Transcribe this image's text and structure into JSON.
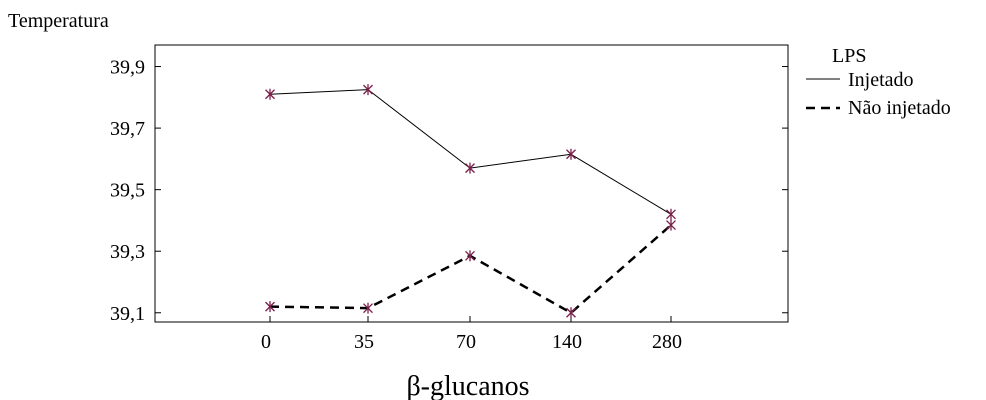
{
  "chart_data": {
    "type": "line",
    "ylabel": "Temperatura",
    "xlabel": "β-glucanos",
    "categories": [
      "0",
      "35",
      "70",
      "140",
      "280"
    ],
    "ylim": [
      39.07,
      39.97
    ],
    "yticks": [
      "39,1",
      "39,3",
      "39,5",
      "39,7",
      "39,9"
    ],
    "ytick_values": [
      39.1,
      39.3,
      39.5,
      39.7,
      39.9
    ],
    "legend": {
      "title": "LPS",
      "placement": "right"
    },
    "grid": false,
    "series": [
      {
        "name": "Injetado",
        "style": "solid",
        "values": [
          39.81,
          39.825,
          39.57,
          39.615,
          39.42
        ]
      },
      {
        "name": "Não injetado",
        "style": "dashed",
        "values": [
          39.12,
          39.115,
          39.285,
          39.1,
          39.385
        ]
      }
    ],
    "marker_color": "#7a1f4a",
    "line_color": "#000000"
  }
}
